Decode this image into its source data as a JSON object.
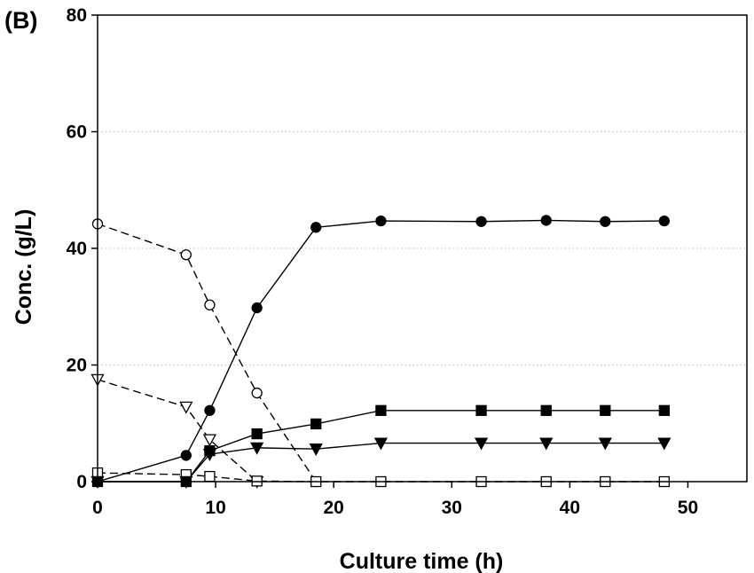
{
  "panel_label": "(B)",
  "chart_data": {
    "type": "line",
    "xlabel": "Culture time (h)",
    "ylabel": "Conc. (g/L)",
    "xlim": [
      0,
      55
    ],
    "ylim": [
      0,
      80
    ],
    "xticks": [
      0,
      10,
      20,
      30,
      40,
      50
    ],
    "yticks": [
      0,
      20,
      40,
      60,
      80
    ],
    "grid": "horizontal dotted at y ticks",
    "series": [
      {
        "marker": "filled-circle",
        "line": "solid",
        "x": [
          0,
          7.5,
          9.5,
          13.5,
          18.5,
          24,
          32.5,
          38,
          43,
          48
        ],
        "y": [
          0,
          4.5,
          12.2,
          29.8,
          43.6,
          44.7,
          44.6,
          44.8,
          44.6,
          44.7
        ]
      },
      {
        "marker": "filled-square",
        "line": "solid",
        "x": [
          0,
          7.5,
          9.5,
          13.5,
          18.5,
          24,
          32.5,
          38,
          43,
          48
        ],
        "y": [
          0,
          0,
          5.3,
          8.2,
          9.9,
          12.2,
          12.2,
          12.2,
          12.2,
          12.2
        ]
      },
      {
        "marker": "filled-triangle-down",
        "line": "solid",
        "x": [
          0,
          7.5,
          9.5,
          13.5,
          18.5,
          24,
          32.5,
          38,
          43,
          48
        ],
        "y": [
          0,
          0,
          4.7,
          5.8,
          5.6,
          6.6,
          6.6,
          6.6,
          6.6,
          6.6
        ]
      },
      {
        "marker": "open-circle",
        "line": "dashed",
        "x": [
          0,
          7.5,
          9.5,
          13.5,
          18.5
        ],
        "y": [
          44.2,
          38.9,
          30.3,
          15.2,
          0
        ]
      },
      {
        "marker": "open-triangle-down",
        "line": "dashed",
        "x": [
          0,
          7.5,
          9.5,
          13.5
        ],
        "y": [
          17.5,
          12.8,
          7.2,
          0
        ]
      },
      {
        "marker": "open-square",
        "line": "dashed",
        "x": [
          0,
          7.5,
          9.5,
          13.5,
          18.5,
          24,
          32.5,
          38,
          43,
          48
        ],
        "y": [
          1.5,
          1.2,
          0.9,
          0.1,
          0,
          0,
          0,
          0,
          0,
          0
        ]
      }
    ]
  }
}
